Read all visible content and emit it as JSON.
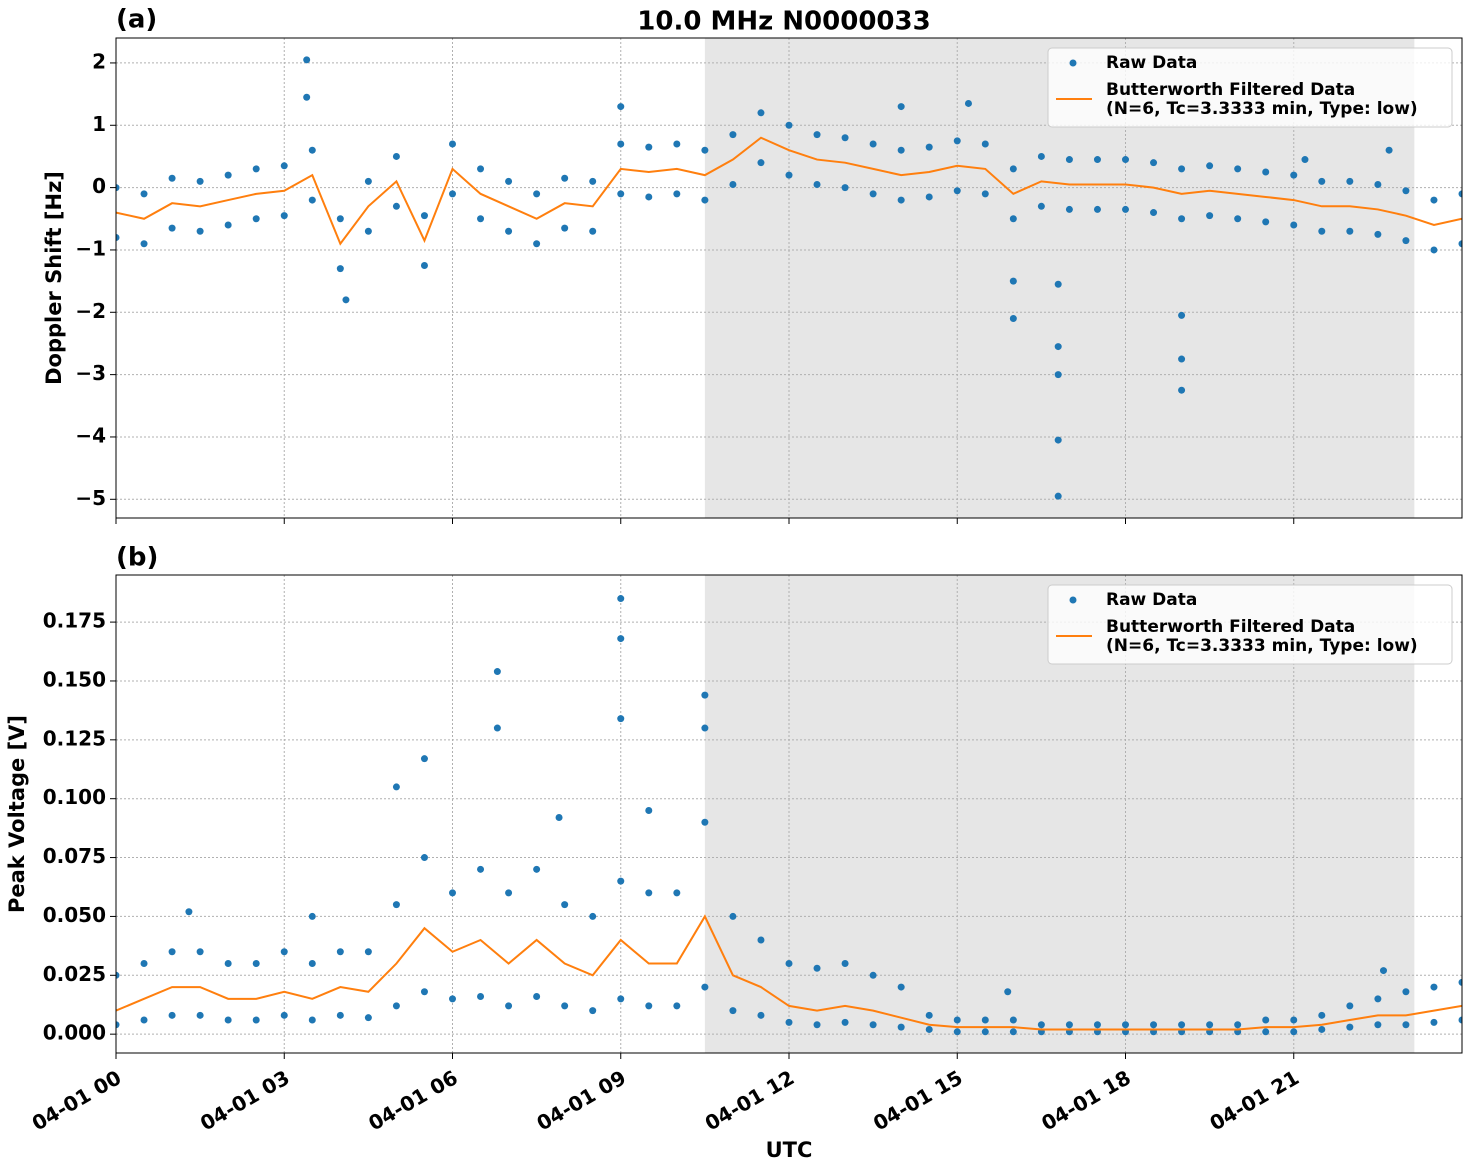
{
  "title": "10.0 MHz N0000033",
  "chart_data": [
    {
      "type": "line",
      "panel_label": "(a)",
      "ylabel": "Doppler Shift [Hz]",
      "xlim": [
        0,
        24
      ],
      "xticks": [
        0,
        3,
        6,
        9,
        12,
        15,
        18,
        21
      ],
      "ylim": [
        -5.3,
        2.4
      ],
      "yticks": [
        {
          "value": -5,
          "label": "−5"
        },
        {
          "value": -4,
          "label": "−4"
        },
        {
          "value": -3,
          "label": "−3"
        },
        {
          "value": -2,
          "label": "−2"
        },
        {
          "value": -1,
          "label": "−1"
        },
        0,
        1,
        2
      ],
      "grid": true,
      "shaded_span": [
        10.5,
        23.15
      ],
      "legend": "upper right",
      "series": [
        {
          "name": "Raw Data",
          "color": "#1f77b4",
          "style": "markers",
          "x": [
            0,
            0.5,
            1,
            1.5,
            2,
            2.5,
            3,
            3.5,
            4,
            4.5,
            5,
            5.5,
            6,
            6.5,
            7,
            7.5,
            8,
            8.5,
            9,
            9.5,
            10,
            10.5,
            11,
            11.5,
            12,
            12.5,
            13,
            13.5,
            14,
            14.5,
            15,
            15.5,
            16,
            16.5,
            17,
            17.5,
            18,
            18.5,
            19,
            19.5,
            20,
            20.5,
            21,
            21.5,
            22,
            22.5,
            23,
            23.5,
            24,
            0,
            0.5,
            1,
            1.5,
            2,
            2.5,
            3,
            3.5,
            4,
            4.5,
            5,
            5.5,
            6,
            6.5,
            7,
            7.5,
            8,
            8.5,
            9,
            9.5,
            10,
            10.5,
            11,
            11.5,
            12,
            12.5,
            13,
            13.5,
            14,
            14.5,
            15,
            15.5,
            16,
            16.5,
            17,
            17.5,
            18,
            18.5,
            19,
            19.5,
            20,
            20.5,
            21,
            21.5,
            22,
            22.5,
            23,
            23.5,
            24,
            3.4,
            3.4,
            4.1,
            9.0,
            14.0,
            15.2,
            16.0,
            16.0,
            16.8,
            16.8,
            16.8,
            16.8,
            16.8,
            19.0,
            19.0,
            19.0,
            21.2,
            22.7
          ],
          "values": [
            0,
            -0.1,
            0.15,
            0.1,
            0.2,
            0.3,
            0.35,
            0.6,
            -0.5,
            0.1,
            0.5,
            -0.45,
            0.7,
            0.3,
            0.1,
            -0.1,
            0.15,
            0.1,
            0.7,
            0.65,
            0.7,
            0.6,
            0.85,
            1.2,
            1.0,
            0.85,
            0.8,
            0.7,
            0.6,
            0.65,
            0.75,
            0.7,
            0.3,
            0.5,
            0.45,
            0.45,
            0.45,
            0.4,
            0.3,
            0.35,
            0.3,
            0.25,
            0.2,
            0.1,
            0.1,
            0.05,
            -0.05,
            -0.2,
            -0.1,
            -0.8,
            -0.9,
            -0.65,
            -0.7,
            -0.6,
            -0.5,
            -0.45,
            -0.2,
            -1.3,
            -0.7,
            -0.3,
            -1.25,
            -0.1,
            -0.5,
            -0.7,
            -0.9,
            -0.65,
            -0.7,
            -0.1,
            -0.15,
            -0.1,
            -0.2,
            0.05,
            0.4,
            0.2,
            0.05,
            0,
            -0.1,
            -0.2,
            -0.15,
            -0.05,
            -0.1,
            -0.5,
            -0.3,
            -0.35,
            -0.35,
            -0.35,
            -0.4,
            -0.5,
            -0.45,
            -0.5,
            -0.55,
            -0.6,
            -0.7,
            -0.7,
            -0.75,
            -0.85,
            -1.0,
            -0.9,
            2.05,
            1.45,
            -1.8,
            1.3,
            1.3,
            1.35,
            -2.1,
            -1.5,
            -4.95,
            -4.05,
            -3.0,
            -2.55,
            -1.55,
            -2.05,
            -2.75,
            -3.25,
            0.45,
            0.6
          ]
        },
        {
          "name": "Butterworth Filtered Data\n(N=6, Tc=3.3333 min, Type: low)",
          "color": "#ff7f0e",
          "style": "line",
          "x": [
            0,
            0.5,
            1,
            1.5,
            2,
            2.5,
            3,
            3.5,
            4,
            4.5,
            5,
            5.5,
            6,
            6.5,
            7,
            7.5,
            8,
            8.5,
            9,
            9.5,
            10,
            10.5,
            11,
            11.5,
            12,
            12.5,
            13,
            13.5,
            14,
            14.5,
            15,
            15.5,
            16,
            16.5,
            17,
            17.5,
            18,
            18.5,
            19,
            19.5,
            20,
            20.5,
            21,
            21.5,
            22,
            22.5,
            23,
            23.5,
            24
          ],
          "values": [
            -0.4,
            -0.5,
            -0.25,
            -0.3,
            -0.2,
            -0.1,
            -0.05,
            0.2,
            -0.9,
            -0.3,
            0.1,
            -0.85,
            0.3,
            -0.1,
            -0.3,
            -0.5,
            -0.25,
            -0.3,
            0.3,
            0.25,
            0.3,
            0.2,
            0.45,
            0.8,
            0.6,
            0.45,
            0.4,
            0.3,
            0.2,
            0.25,
            0.35,
            0.3,
            -0.1,
            0.1,
            0.05,
            0.05,
            0.05,
            0,
            -0.1,
            -0.05,
            -0.1,
            -0.15,
            -0.2,
            -0.3,
            -0.3,
            -0.35,
            -0.45,
            -0.6,
            -0.5
          ]
        }
      ]
    },
    {
      "type": "line",
      "panel_label": "(b)",
      "ylabel": "Peak Voltage [V]",
      "xlabel": "UTC",
      "xlim": [
        0,
        24
      ],
      "xticks": [
        {
          "value": 0,
          "label": "04-01 00"
        },
        {
          "value": 3,
          "label": "04-01 03"
        },
        {
          "value": 6,
          "label": "04-01 06"
        },
        {
          "value": 9,
          "label": "04-01 09"
        },
        {
          "value": 12,
          "label": "04-01 12"
        },
        {
          "value": 15,
          "label": "04-01 15"
        },
        {
          "value": 18,
          "label": "04-01 18"
        },
        {
          "value": 21,
          "label": "04-01 21"
        }
      ],
      "ylim": [
        -0.008,
        0.195
      ],
      "yticks": [
        {
          "value": 0,
          "label": "0.000"
        },
        0.025,
        {
          "value": 0.05,
          "label": "0.050"
        },
        0.075,
        {
          "value": 0.1,
          "label": "0.100"
        },
        0.125,
        {
          "value": 0.15,
          "label": "0.150"
        },
        0.175
      ],
      "grid": true,
      "shaded_span": [
        10.5,
        23.15
      ],
      "legend": "upper right",
      "series": [
        {
          "name": "Raw Data",
          "color": "#1f77b4",
          "style": "markers",
          "x": [
            0,
            0.5,
            1,
            1.5,
            2,
            2.5,
            3,
            3.5,
            4,
            4.5,
            5,
            5.5,
            6,
            6.5,
            7,
            7.5,
            8,
            8.5,
            9,
            9.5,
            10,
            10.5,
            11,
            11.5,
            12,
            12.5,
            13,
            13.5,
            14,
            14.5,
            15,
            15.5,
            16,
            16.5,
            17,
            17.5,
            18,
            18.5,
            19,
            19.5,
            20,
            20.5,
            21,
            21.5,
            22,
            22.5,
            23,
            23.5,
            24,
            0,
            0.5,
            1,
            1.5,
            2,
            2.5,
            3,
            3.5,
            4,
            4.5,
            5,
            5.5,
            6,
            6.5,
            7,
            7.5,
            8,
            8.5,
            9,
            9.5,
            10,
            10.5,
            11,
            11.5,
            12,
            12.5,
            13,
            13.5,
            14,
            14.5,
            15,
            15.5,
            16,
            16.5,
            17,
            17.5,
            18,
            18.5,
            19,
            19.5,
            20,
            20.5,
            21,
            21.5,
            22,
            22.5,
            23,
            23.5,
            24,
            5.0,
            5.5,
            6.8,
            6.8,
            9.0,
            9.0,
            9.0,
            10.5,
            10.5,
            7.9,
            9.5,
            15.9,
            22.6,
            1.3,
            3.5
          ],
          "values": [
            0.025,
            0.03,
            0.035,
            0.035,
            0.03,
            0.03,
            0.035,
            0.03,
            0.035,
            0.035,
            0.055,
            0.075,
            0.06,
            0.07,
            0.06,
            0.07,
            0.055,
            0.05,
            0.065,
            0.06,
            0.06,
            0.09,
            0.05,
            0.04,
            0.03,
            0.028,
            0.03,
            0.025,
            0.02,
            0.008,
            0.006,
            0.006,
            0.006,
            0.004,
            0.004,
            0.004,
            0.004,
            0.004,
            0.004,
            0.004,
            0.004,
            0.006,
            0.006,
            0.008,
            0.012,
            0.015,
            0.018,
            0.02,
            0.022,
            0.004,
            0.006,
            0.008,
            0.008,
            0.006,
            0.006,
            0.008,
            0.006,
            0.008,
            0.007,
            0.012,
            0.018,
            0.015,
            0.016,
            0.012,
            0.016,
            0.012,
            0.01,
            0.015,
            0.012,
            0.012,
            0.02,
            0.01,
            0.008,
            0.005,
            0.004,
            0.005,
            0.004,
            0.003,
            0.002,
            0.001,
            0.001,
            0.001,
            0.001,
            0.001,
            0.001,
            0.001,
            0.001,
            0.001,
            0.001,
            0.001,
            0.001,
            0.001,
            0.002,
            0.003,
            0.004,
            0.004,
            0.005,
            0.006,
            0.105,
            0.117,
            0.154,
            0.13,
            0.185,
            0.168,
            0.134,
            0.144,
            0.13,
            0.092,
            0.095,
            0.018,
            0.027,
            0.052,
            0.05
          ]
        },
        {
          "name": "Butterworth Filtered Data\n(N=6, Tc=3.3333 min, Type: low)",
          "color": "#ff7f0e",
          "style": "line",
          "x": [
            0,
            0.5,
            1,
            1.5,
            2,
            2.5,
            3,
            3.5,
            4,
            4.5,
            5,
            5.5,
            6,
            6.5,
            7,
            7.5,
            8,
            8.5,
            9,
            9.5,
            10,
            10.5,
            11,
            11.5,
            12,
            12.5,
            13,
            13.5,
            14,
            14.5,
            15,
            15.5,
            16,
            16.5,
            17,
            17.5,
            18,
            18.5,
            19,
            19.5,
            20,
            20.5,
            21,
            21.5,
            22,
            22.5,
            23,
            23.5,
            24
          ],
          "values": [
            0.01,
            0.015,
            0.02,
            0.02,
            0.015,
            0.015,
            0.018,
            0.015,
            0.02,
            0.018,
            0.03,
            0.045,
            0.035,
            0.04,
            0.03,
            0.04,
            0.03,
            0.025,
            0.04,
            0.03,
            0.03,
            0.05,
            0.025,
            0.02,
            0.012,
            0.01,
            0.012,
            0.01,
            0.007,
            0.004,
            0.003,
            0.003,
            0.003,
            0.002,
            0.002,
            0.002,
            0.002,
            0.002,
            0.002,
            0.002,
            0.002,
            0.003,
            0.003,
            0.004,
            0.006,
            0.008,
            0.008,
            0.01,
            0.012
          ]
        }
      ]
    }
  ]
}
